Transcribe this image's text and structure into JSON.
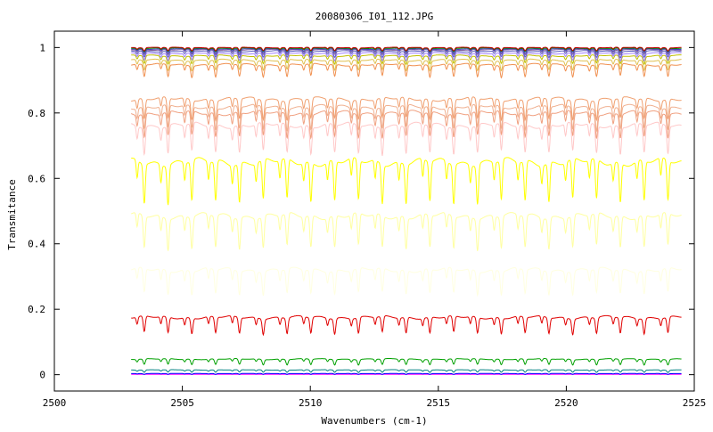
{
  "chart_data": {
    "type": "line",
    "title": "20080306_I01_112.JPG",
    "xlabel": "Wavenumbers (cm-1)",
    "ylabel": "Transmitance",
    "xlim": [
      2500,
      2525
    ],
    "ylim": [
      -0.05,
      1.05
    ],
    "x_ticks": [
      "2500",
      "2505",
      "2510",
      "2515",
      "2520",
      "2525"
    ],
    "y_ticks": [
      "0",
      "0.2",
      "0.4",
      "0.6",
      "0.8",
      "1"
    ],
    "grid": false,
    "legend": "none",
    "x_range_data": [
      2503.0,
      2524.5
    ],
    "line_period_cm": 0.93,
    "series": [
      {
        "color": "#ff00ff",
        "baseline": 0.001,
        "depth": 0.0
      },
      {
        "color": "#0000ff",
        "baseline": 0.003,
        "depth": 0.002
      },
      {
        "color": "#008080",
        "baseline": 0.013,
        "depth": 0.006
      },
      {
        "color": "#00a000",
        "baseline": 0.044,
        "depth": 0.014
      },
      {
        "color": "#e00000",
        "baseline": 0.165,
        "depth": 0.04
      },
      {
        "color": "#ffffe0",
        "baseline": 0.305,
        "depth": 0.06
      },
      {
        "color": "#ffffa0",
        "baseline": 0.465,
        "depth": 0.08
      },
      {
        "color": "#ffff00",
        "baseline": 0.625,
        "depth": 0.1
      },
      {
        "color": "#ffc8c8",
        "baseline": 0.745,
        "depth": 0.07
      },
      {
        "color": "#f0a080",
        "baseline": 0.785,
        "depth": 0.06
      },
      {
        "color": "#f0b090",
        "baseline": 0.805,
        "depth": 0.055
      },
      {
        "color": "#f0a070",
        "baseline": 0.83,
        "depth": 0.05
      },
      {
        "color": "#f09050",
        "baseline": 0.94,
        "depth": 0.03
      },
      {
        "color": "#e0c050",
        "baseline": 0.955,
        "depth": 0.025
      },
      {
        "color": "#c0c000",
        "baseline": 0.97,
        "depth": 0.02
      },
      {
        "color": "#a080ff",
        "baseline": 0.978,
        "depth": 0.018
      },
      {
        "color": "#6060c0",
        "baseline": 0.985,
        "depth": 0.015
      },
      {
        "color": "#8060a0",
        "baseline": 0.99,
        "depth": 0.012
      },
      {
        "color": "#4040c0",
        "baseline": 0.993,
        "depth": 0.01
      },
      {
        "color": "#008000",
        "baseline": 0.996,
        "depth": 0.008
      },
      {
        "color": "#c00000",
        "baseline": 0.998,
        "depth": 0.008
      }
    ]
  }
}
